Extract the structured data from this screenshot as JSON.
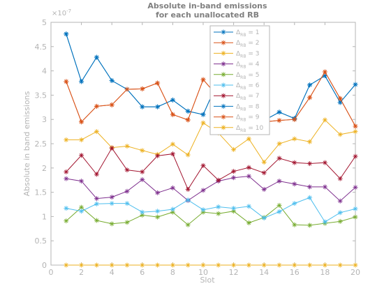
{
  "chart_data": {
    "type": "line",
    "title": [
      "Absolute in-band emissions",
      "for each unallocated RB"
    ],
    "xlabel": "Slot",
    "ylabel": "Absolute in band emissions",
    "y_exponent": "×10",
    "y_exponent_power": "-7",
    "xlim": [
      0,
      20
    ],
    "ylim": [
      0,
      5
    ],
    "x_ticks": [
      "0",
      "2",
      "4",
      "6",
      "8",
      "10",
      "12",
      "14",
      "16",
      "18",
      "20"
    ],
    "y_ticks": [
      "0",
      "0.5",
      "1",
      "1.5",
      "2",
      "2.5",
      "3",
      "3.5",
      "4",
      "4.5",
      "5"
    ],
    "grid": false,
    "legend_position": "top-center",
    "marker": "asterisk",
    "x": [
      1,
      2,
      3,
      4,
      5,
      6,
      7,
      8,
      9,
      10,
      11,
      12,
      13,
      14,
      15,
      16,
      17,
      18,
      19,
      20
    ],
    "series": [
      {
        "name": "Δ",
        "sub": "RB",
        "num": " = 1",
        "color": "#0072BD",
        "values": [
          4.76,
          3.78,
          4.28,
          3.8,
          3.62,
          3.26,
          3.26,
          3.4,
          3.17,
          3.1,
          3.8,
          3.22,
          3.05,
          2.98,
          3.15,
          3.02,
          3.71,
          3.9,
          3.35,
          3.72
        ]
      },
      {
        "name": "Δ",
        "sub": "RB",
        "num": " = 2",
        "color": "#D95319",
        "values": [
          3.78,
          2.95,
          3.27,
          3.3,
          3.62,
          3.63,
          3.75,
          3.1,
          2.99,
          3.82,
          3.46,
          3.55,
          2.9,
          2.95,
          2.98,
          3.0,
          3.45,
          3.98,
          3.43,
          2.86
        ]
      },
      {
        "name": "Δ",
        "sub": "RB",
        "num": " = 3",
        "color": "#EDB120",
        "values": [
          2.58,
          2.58,
          2.75,
          2.42,
          2.45,
          2.36,
          2.28,
          2.49,
          2.27,
          2.93,
          2.72,
          2.38,
          2.6,
          2.12,
          2.5,
          2.6,
          2.54,
          2.99,
          2.69,
          2.75
        ]
      },
      {
        "name": "Δ",
        "sub": "RB",
        "num": " = 4",
        "color": "#7E2F8E",
        "values": [
          1.78,
          1.73,
          1.37,
          1.4,
          1.52,
          1.76,
          1.49,
          1.59,
          1.33,
          1.54,
          1.73,
          1.8,
          1.83,
          1.56,
          1.73,
          1.67,
          1.61,
          1.61,
          1.32,
          1.6
        ]
      },
      {
        "name": "Δ",
        "sub": "RB",
        "num": " = 5",
        "color": "#77AC30",
        "values": [
          0.91,
          1.19,
          0.92,
          0.85,
          0.88,
          1.03,
          0.99,
          1.09,
          0.83,
          1.09,
          1.06,
          1.11,
          0.87,
          0.98,
          1.23,
          0.83,
          0.82,
          0.86,
          0.9,
          0.99
        ]
      },
      {
        "name": "Δ",
        "sub": "RB",
        "num": " = 6",
        "color": "#4DBEEE",
        "values": [
          1.17,
          1.11,
          1.26,
          1.27,
          1.27,
          1.09,
          1.11,
          1.15,
          1.34,
          1.14,
          1.2,
          1.17,
          1.21,
          0.97,
          1.1,
          1.27,
          1.39,
          0.89,
          1.08,
          1.16
        ]
      },
      {
        "name": "Δ",
        "sub": "RB",
        "num": " = 7",
        "color": "#A2142F",
        "values": [
          1.92,
          2.26,
          1.87,
          2.41,
          1.96,
          1.92,
          2.25,
          2.29,
          1.56,
          2.05,
          1.75,
          1.93,
          2.01,
          1.9,
          2.2,
          2.11,
          2.09,
          2.11,
          1.78,
          2.24
        ]
      },
      {
        "name": "Δ",
        "sub": "RB",
        "num": " = 8",
        "color": "#0072BD",
        "values": [
          4.76,
          3.78,
          4.28,
          3.8,
          3.62,
          3.26,
          3.26,
          3.4,
          3.17,
          3.1,
          3.8,
          3.22,
          3.05,
          2.98,
          3.15,
          3.02,
          3.71,
          3.9,
          3.35,
          3.72
        ]
      },
      {
        "name": "Δ",
        "sub": "RB",
        "num": " = 9",
        "color": "#D95319",
        "values": [
          3.78,
          2.95,
          3.27,
          3.3,
          3.62,
          3.63,
          3.75,
          3.1,
          2.99,
          3.82,
          3.46,
          3.55,
          2.9,
          2.95,
          2.98,
          3.0,
          3.45,
          3.98,
          3.43,
          2.86
        ]
      },
      {
        "name": "Δ",
        "sub": "RB",
        "num": " = 10",
        "color": "#EDB120",
        "values": [
          0,
          0,
          0,
          0,
          0,
          0,
          0,
          0,
          0,
          0,
          0,
          0,
          0,
          0,
          0,
          0,
          0,
          0,
          0,
          0
        ]
      }
    ]
  }
}
